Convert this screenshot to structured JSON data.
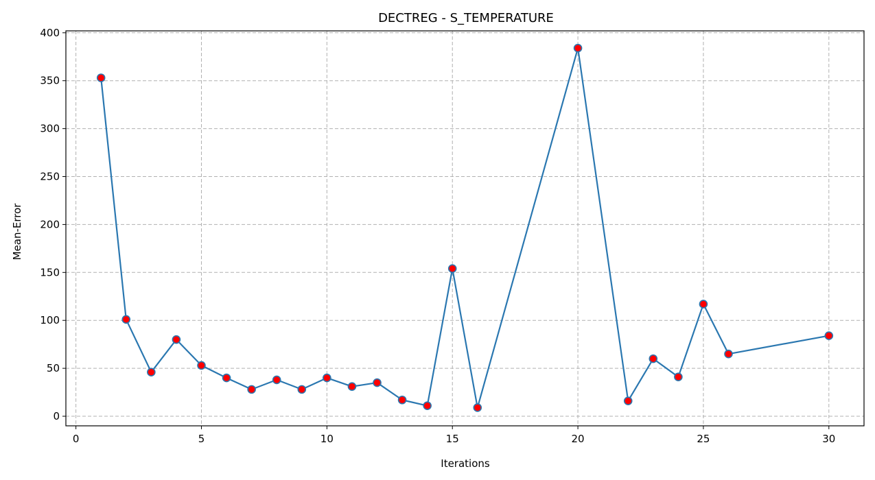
{
  "chart_data": {
    "type": "line",
    "title": "DECTREG - S_TEMPERATURE",
    "xlabel": "Iterations",
    "ylabel": "Mean-Error",
    "xlim": [
      -0.4,
      31.4
    ],
    "ylim": [
      -10,
      402
    ],
    "xticks": [
      0,
      5,
      10,
      15,
      20,
      25,
      30
    ],
    "yticks": [
      0,
      50,
      100,
      150,
      200,
      250,
      300,
      350,
      400
    ],
    "grid": true,
    "line_color": "#2a77b0",
    "marker_color": "#ff0000",
    "series": [
      {
        "x": [
          1,
          2,
          3,
          4,
          5,
          6,
          7,
          8,
          9,
          10,
          11,
          12,
          13,
          14,
          15,
          16,
          20,
          22,
          23,
          24,
          25,
          26,
          30
        ],
        "values": [
          353,
          101,
          46,
          80,
          53,
          40,
          28,
          38,
          28,
          40,
          31,
          35,
          17,
          11,
          154,
          9,
          384,
          16,
          60,
          41,
          117,
          65,
          84
        ]
      }
    ]
  }
}
